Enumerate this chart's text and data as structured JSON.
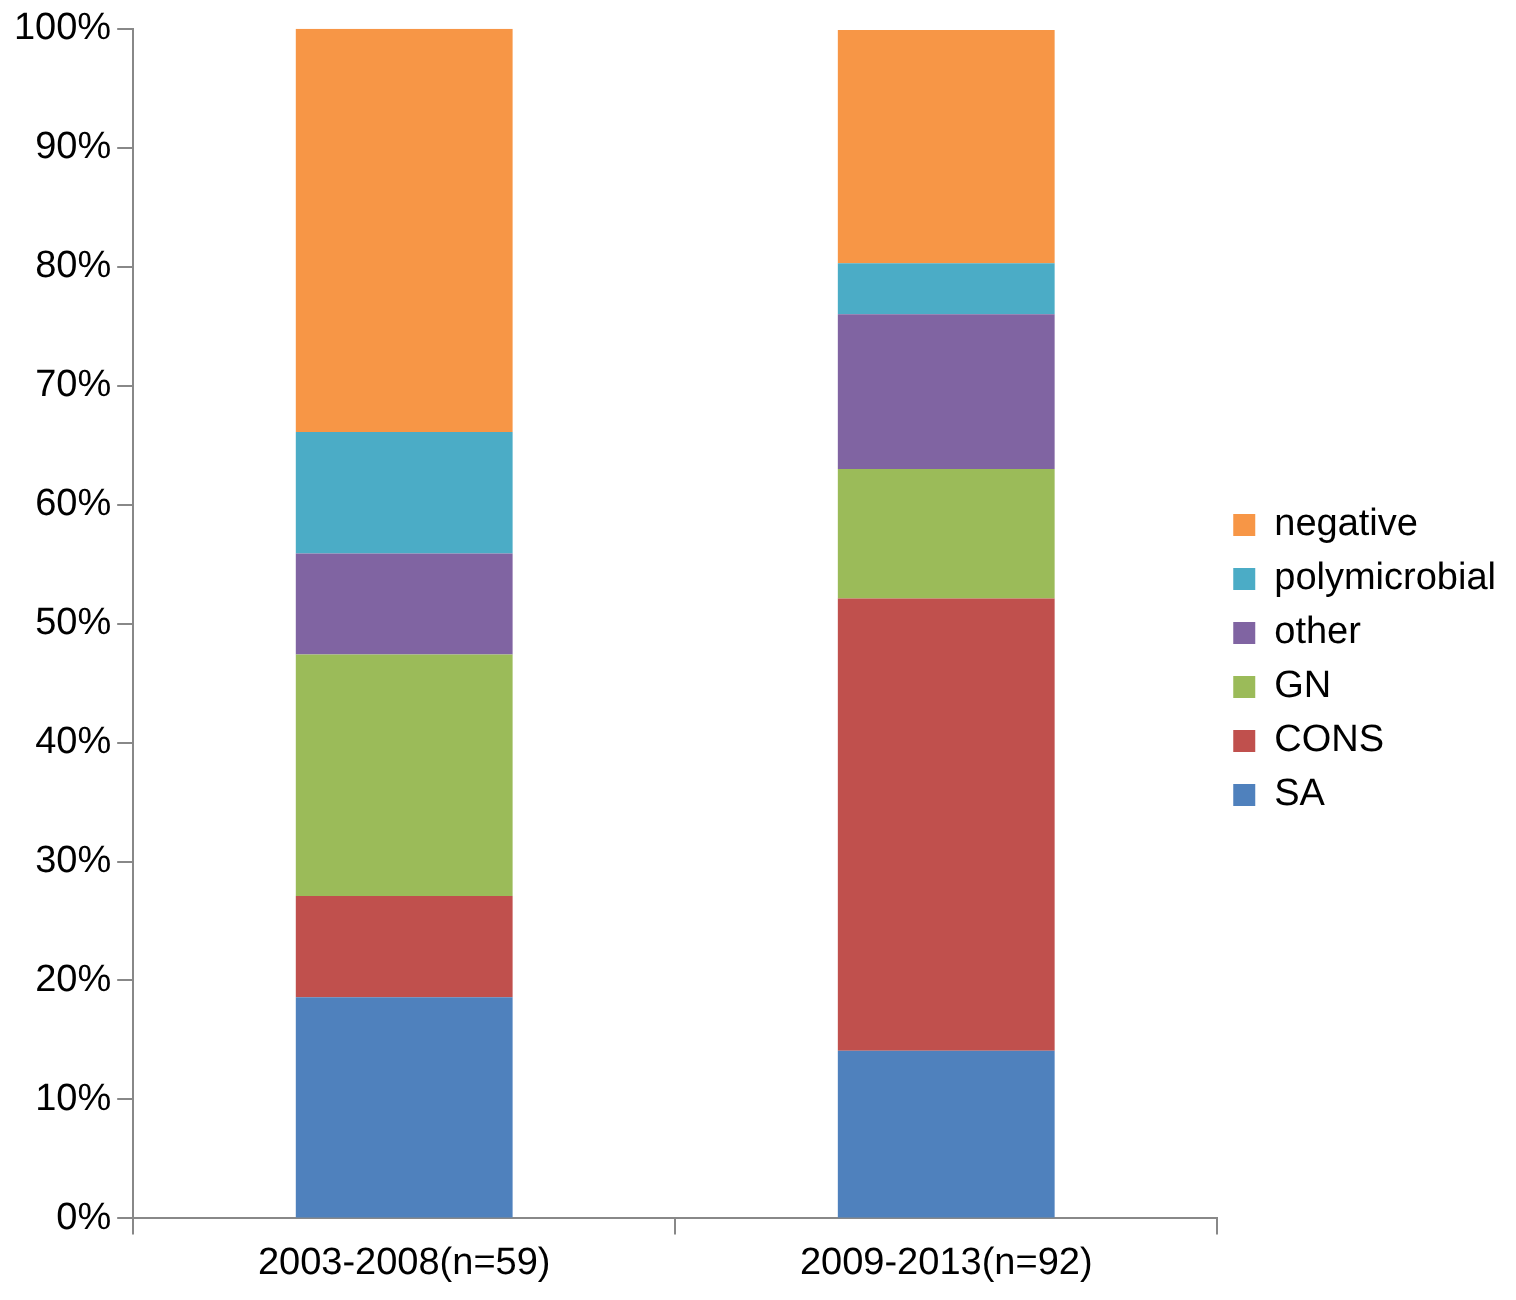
{
  "chart_data": {
    "type": "bar",
    "stacked": true,
    "categories": [
      "2003-2008(n=59)",
      "2009-2013(n=92)"
    ],
    "series": [
      {
        "name": "SA",
        "color": "#4f81bd",
        "values": [
          18.6,
          14.1
        ]
      },
      {
        "name": "CONS",
        "color": "#c0504d",
        "values": [
          8.5,
          38.0
        ]
      },
      {
        "name": "GN",
        "color": "#9bbb59",
        "values": [
          20.3,
          10.9
        ]
      },
      {
        "name": "other",
        "color": "#8064a2",
        "values": [
          8.5,
          13.0
        ]
      },
      {
        "name": "polymicrobial",
        "color": "#4bacc6",
        "values": [
          10.2,
          4.3
        ]
      },
      {
        "name": "negative",
        "color": "#f79646",
        "values": [
          33.9,
          19.6
        ]
      }
    ],
    "ylim": [
      0,
      100
    ],
    "yticks": [
      {
        "value": 0,
        "label": "0%"
      },
      {
        "value": 10,
        "label": "10%"
      },
      {
        "value": 20,
        "label": "20%"
      },
      {
        "value": 30,
        "label": "30%"
      },
      {
        "value": 40,
        "label": "40%"
      },
      {
        "value": 50,
        "label": "50%"
      },
      {
        "value": 60,
        "label": "60%"
      },
      {
        "value": 70,
        "label": "70%"
      },
      {
        "value": 80,
        "label": "80%"
      },
      {
        "value": 90,
        "label": "90%"
      },
      {
        "value": 100,
        "label": "100%"
      }
    ],
    "grid": false,
    "legend": "right"
  }
}
